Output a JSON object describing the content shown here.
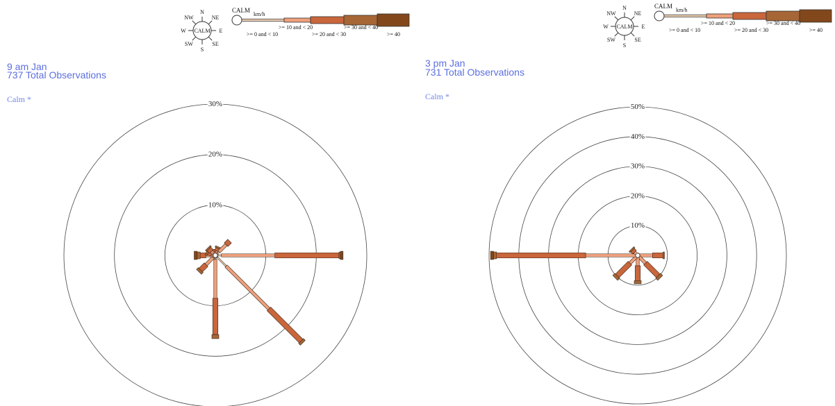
{
  "legend": {
    "compass_labels": [
      "N",
      "NE",
      "E",
      "SE",
      "S",
      "SW",
      "W",
      "NW"
    ],
    "center_label": "CALM",
    "calm_label": "CALM",
    "unit": "km/h",
    "speed_bins": [
      ">= 0 and < 10",
      ">= 10 and < 20",
      ">= 20 and < 30",
      ">= 30 and < 40",
      ">= 40"
    ]
  },
  "colors": {
    "bins": [
      "#f9d7b8",
      "#eea07c",
      "#c9663c",
      "#a66636",
      "#82481c"
    ],
    "title": "#5c6fe0",
    "calm": "#7386ea",
    "rings": "#444444"
  },
  "panels": [
    {
      "title_line1": "9 am  Jan",
      "title_line2": "737 Total Observations",
      "calm_text": "Calm *"
    },
    {
      "title_line1": "3 pm  Jan",
      "title_line2": "731 Total Observations",
      "calm_text": "Calm *"
    }
  ],
  "chart_data": [
    {
      "type": "wind-rose",
      "title": "9 am  Jan",
      "subtitle": "737 Total Observations",
      "unit": "km/h",
      "ring_labels": [
        "10%",
        "20%",
        "30%"
      ],
      "rmax": 30,
      "directions": [
        "N",
        "NNE",
        "NE",
        "ENE",
        "E",
        "ESE",
        "SE",
        "SSE",
        "S",
        "SSW",
        "SW",
        "WSW",
        "W",
        "WNW",
        "NW",
        "NNW"
      ],
      "series_names": [
        ">= 0 and < 10",
        ">= 10 and < 20",
        ">= 20 and < 30",
        ">= 30 and < 40",
        ">= 40"
      ],
      "values": {
        "N": [
          0.3,
          0.4,
          0.5,
          0,
          0
        ],
        "NNE": [
          0.4,
          0.5,
          0.6,
          0.3,
          0
        ],
        "NE": [
          1.0,
          2.0,
          1.0,
          0,
          0
        ],
        "ENE": [
          0.3,
          0.3,
          0,
          0,
          0
        ],
        "E": [
          1.2,
          10.6,
          12.7,
          0.3,
          0.5
        ],
        "ESE": [
          0.2,
          0.3,
          0,
          0,
          0
        ],
        "SE": [
          3.0,
          12.0,
          9.0,
          0.5,
          0
        ],
        "SSE": [
          0.2,
          0.3,
          0,
          0,
          0
        ],
        "S": [
          0.8,
          7.7,
          7.2,
          0.8,
          0
        ],
        "SSW": [
          0.2,
          0.3,
          0,
          0,
          0
        ],
        "SW": [
          0.6,
          2.0,
          1.5,
          0.5,
          0
        ],
        "WSW": [
          0.3,
          0.3,
          0,
          0,
          0
        ],
        "W": [
          0.6,
          1.3,
          1.1,
          0.6,
          0.6
        ],
        "WNW": [
          0.3,
          0.5,
          0.7,
          0.4,
          0
        ],
        "NW": [
          0.4,
          0.7,
          0.7,
          0.3,
          0
        ],
        "NNW": [
          0.3,
          0.3,
          0,
          0,
          0
        ]
      }
    },
    {
      "type": "wind-rose",
      "title": "3 pm  Jan",
      "subtitle": "731 Total Observations",
      "unit": "km/h",
      "ring_labels": [
        "10%",
        "20%",
        "30%",
        "40%",
        "50%"
      ],
      "rmax": 50,
      "directions": [
        "N",
        "NNE",
        "NE",
        "ENE",
        "E",
        "ESE",
        "SE",
        "SSE",
        "S",
        "SSW",
        "SW",
        "WSW",
        "W",
        "WNW",
        "NW",
        "NNW"
      ],
      "series_names": [
        ">= 0 and < 10",
        ">= 10 and < 20",
        ">= 20 and < 30",
        ">= 30 and < 40",
        ">= 40"
      ],
      "values": {
        "N": [
          0.3,
          0.3,
          0,
          0,
          0
        ],
        "NNE": [
          0.3,
          0.3,
          0,
          0,
          0
        ],
        "NE": [
          0.3,
          0.3,
          0,
          0,
          0
        ],
        "ENE": [
          0.3,
          0.3,
          0,
          0,
          0
        ],
        "E": [
          0.5,
          4.5,
          3.5,
          0.5,
          0
        ],
        "ESE": [
          0.3,
          0.3,
          0,
          0,
          0
        ],
        "SE": [
          0.5,
          3.2,
          6.0,
          1.0,
          0
        ],
        "SSE": [
          0.3,
          0.3,
          0,
          0,
          0
        ],
        "S": [
          0.5,
          3.0,
          5.0,
          1.0,
          0
        ],
        "SSW": [
          0.3,
          0.3,
          0,
          0,
          0
        ],
        "SW": [
          0.5,
          3.2,
          6.0,
          1.0,
          0
        ],
        "WSW": [
          0.3,
          0.3,
          0,
          0,
          0
        ],
        "W": [
          0.5,
          17.0,
          30.0,
          1.0,
          1.0
        ],
        "WNW": [
          0.3,
          0.3,
          0,
          0,
          0
        ],
        "NW": [
          0.5,
          1.0,
          1.0,
          0.5,
          0
        ],
        "NNW": [
          0.3,
          0.3,
          0,
          0,
          0
        ]
      }
    }
  ]
}
